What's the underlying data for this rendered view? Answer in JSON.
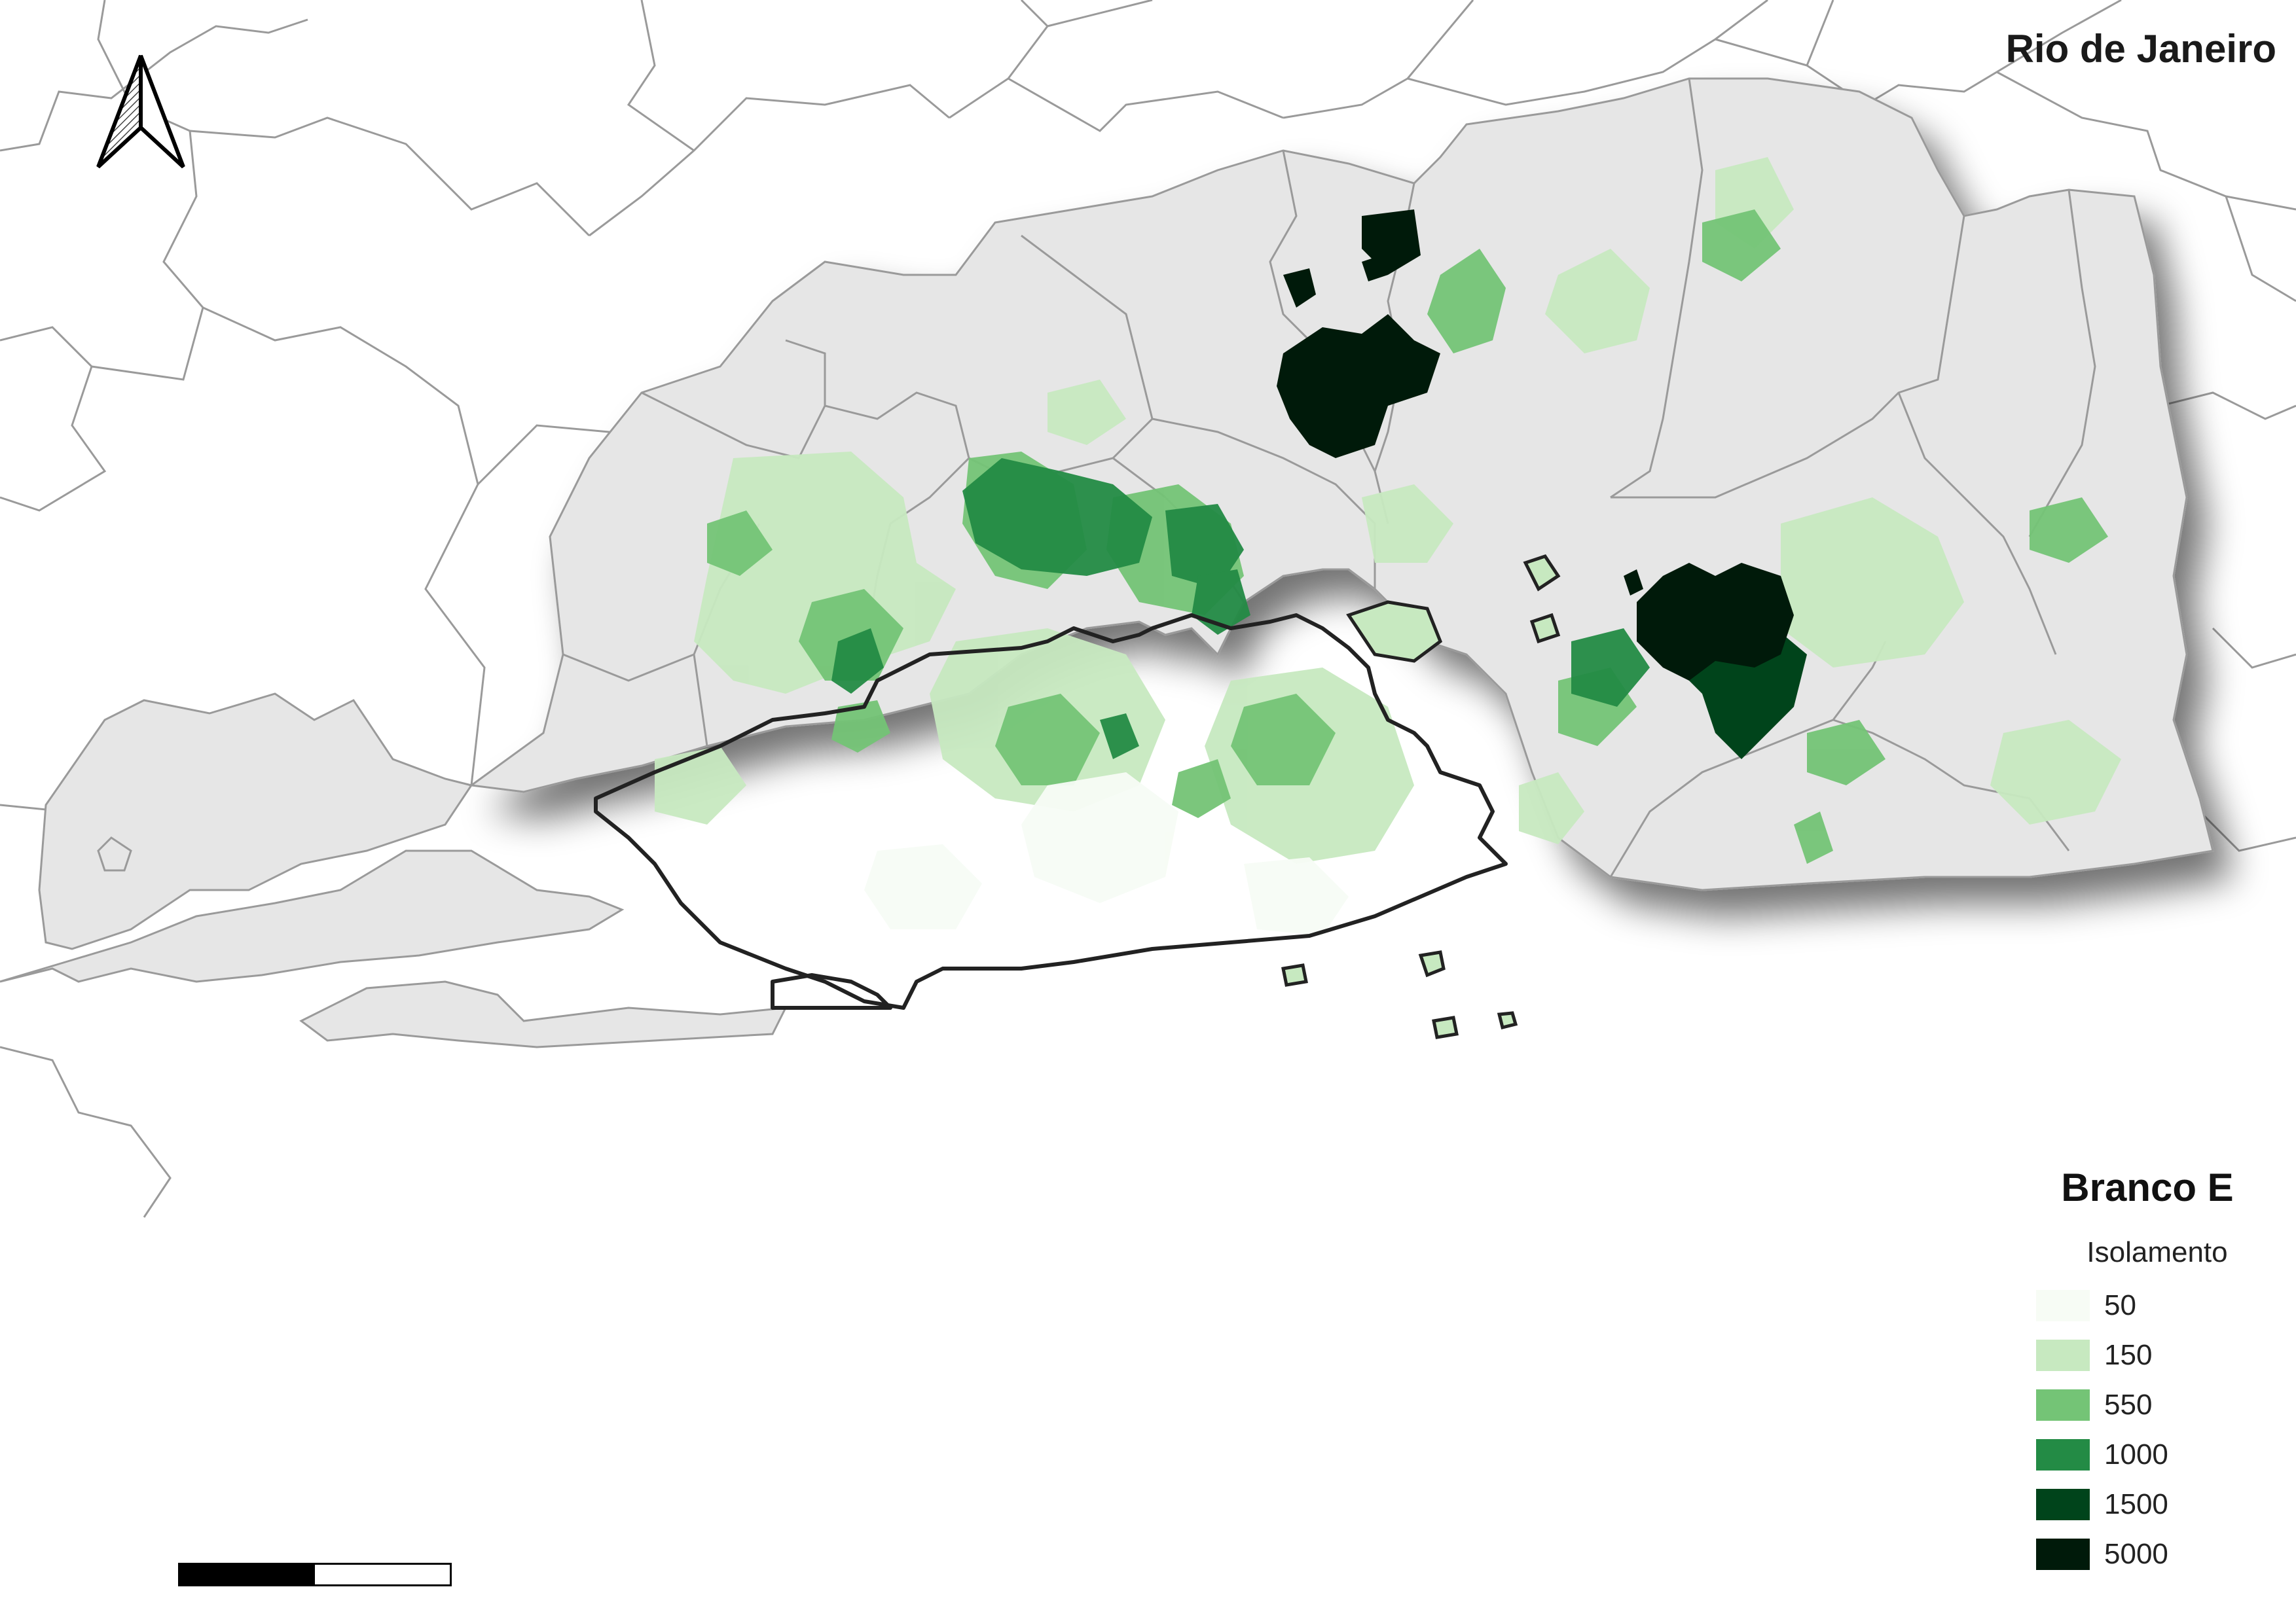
{
  "map": {
    "title": "Rio de Janeiro",
    "north_arrow": "north-arrow-icon",
    "scale_bar": "scale-bar"
  },
  "legend": {
    "title": "Branco E",
    "subtitle": "Isolamento",
    "classes": [
      {
        "label": "50",
        "color": "#f7fcf5"
      },
      {
        "label": "150",
        "color": "#c7e9c0"
      },
      {
        "label": "550",
        "color": "#74c476"
      },
      {
        "label": "1000",
        "color": "#238b45"
      },
      {
        "label": "1500",
        "color": "#00441b"
      },
      {
        "label": "5000",
        "color": "#001a0a"
      }
    ]
  },
  "colors": {
    "land": "#e6e6e6",
    "municipal_border": "#9a9a9a",
    "city_outline": "#222222",
    "background": "#ffffff"
  }
}
